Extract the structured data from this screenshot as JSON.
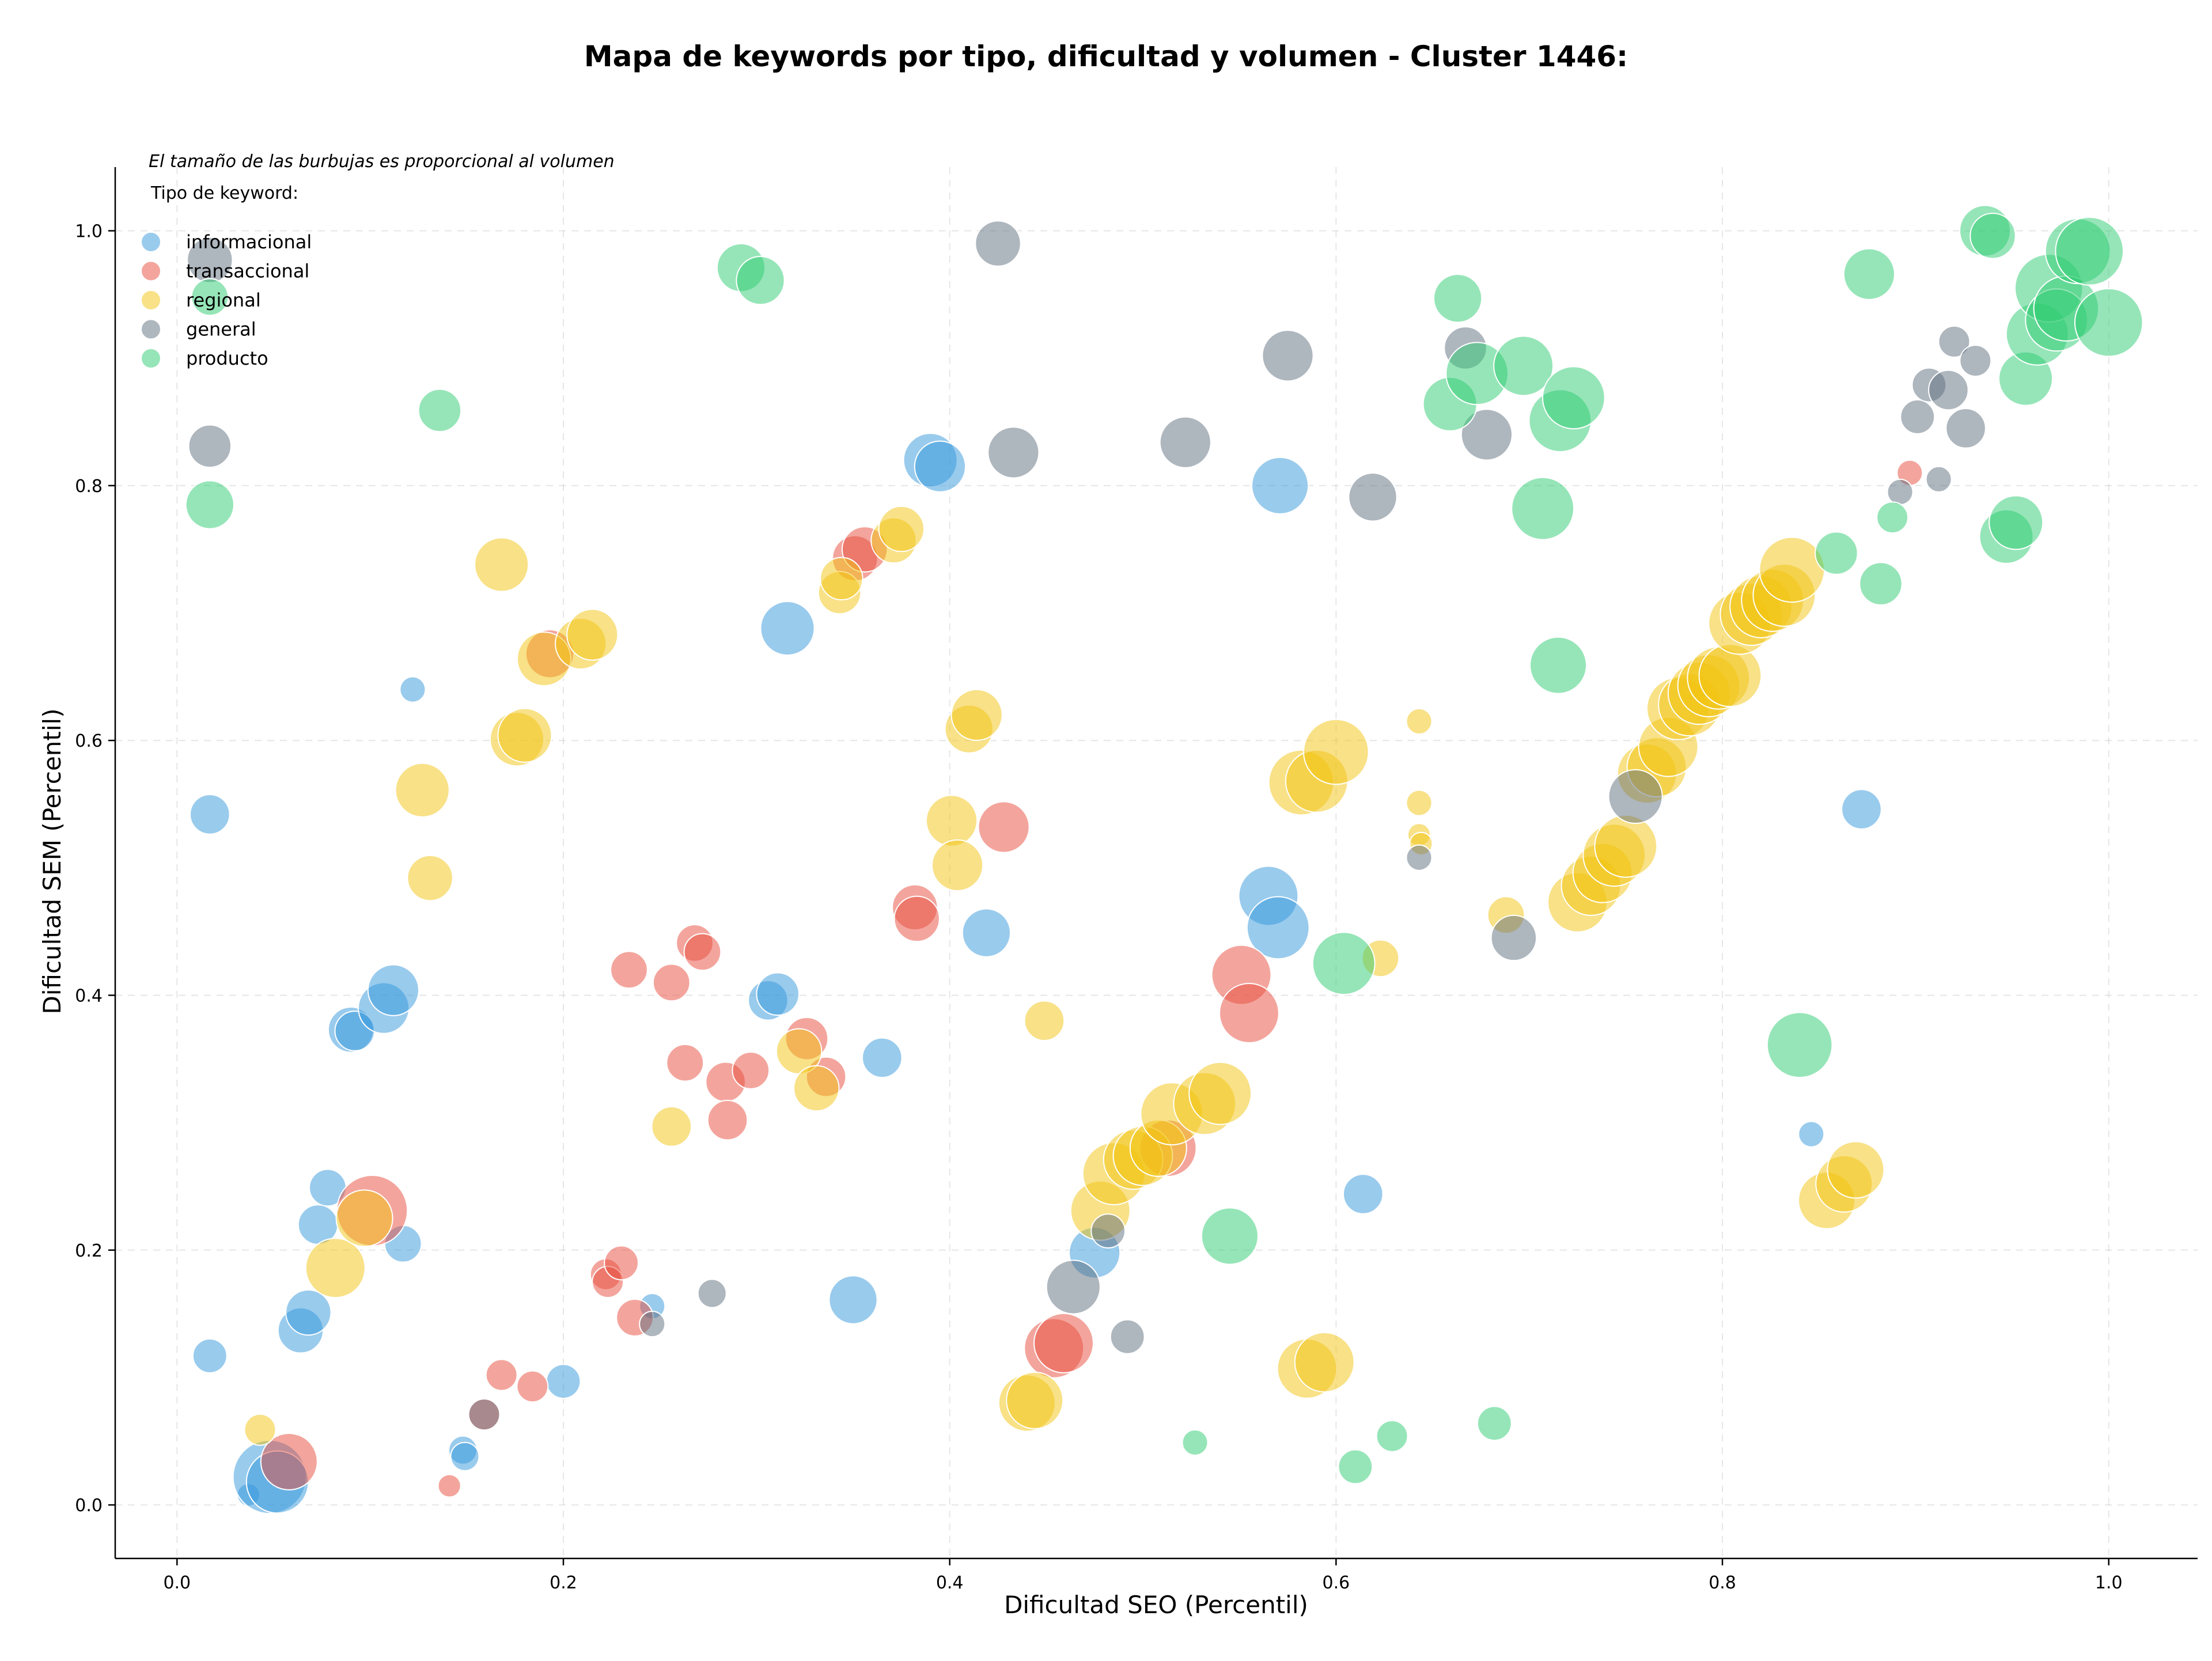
{
  "chart_data": {
    "type": "scatter",
    "title": "Mapa de keywords por tipo, dificultad y volumen - Cluster 1446:",
    "xlabel": "Dificultad SEO (Percentil)",
    "ylabel": "Dificultad SEM (Percentil)",
    "annotation": "El tamaño de las burbujas es proporcional al volumen",
    "xlim": [
      -0.032,
      1.046
    ],
    "ylim": [
      -0.042,
      1.05
    ],
    "xticks": [
      "0.0",
      "0.2",
      "0.4",
      "0.6",
      "0.8",
      "1.0"
    ],
    "yticks": [
      "0.0",
      "0.2",
      "0.4",
      "0.6",
      "0.8",
      "1.0"
    ],
    "xtick_values": [
      0,
      0.2,
      0.4,
      0.6,
      0.8,
      1.0
    ],
    "ytick_values": [
      0,
      0.2,
      0.4,
      0.6,
      0.8,
      1.0
    ],
    "grid": true,
    "legend": {
      "title": "Tipo de keyword:",
      "placement": "top-left"
    },
    "series": [
      {
        "name": "informacional",
        "color": "#3498db",
        "points": [
          [
            0.017,
            0.542,
            14
          ],
          [
            0.017,
            0.117,
            12
          ],
          [
            0.037,
            0.008,
            8
          ],
          [
            0.048,
            0.022,
            26
          ],
          [
            0.052,
            0.018,
            22
          ],
          [
            0.064,
            0.137,
            16
          ],
          [
            0.068,
            0.151,
            16
          ],
          [
            0.073,
            0.22,
            14
          ],
          [
            0.078,
            0.249,
            13
          ],
          [
            0.09,
            0.373,
            16
          ],
          [
            0.092,
            0.372,
            14
          ],
          [
            0.107,
            0.39,
            18
          ],
          [
            0.112,
            0.404,
            18
          ],
          [
            0.117,
            0.205,
            13
          ],
          [
            0.122,
            0.64,
            9
          ],
          [
            0.148,
            0.043,
            10
          ],
          [
            0.149,
            0.038,
            10
          ],
          [
            0.2,
            0.097,
            12
          ],
          [
            0.246,
            0.156,
            9
          ],
          [
            0.306,
            0.396,
            14
          ],
          [
            0.311,
            0.401,
            15
          ],
          [
            0.316,
            0.688,
            19
          ],
          [
            0.35,
            0.161,
            17
          ],
          [
            0.365,
            0.351,
            14
          ],
          [
            0.39,
            0.82,
            19
          ],
          [
            0.395,
            0.815,
            18
          ],
          [
            0.419,
            0.449,
            17
          ],
          [
            0.475,
            0.198,
            18
          ],
          [
            0.565,
            0.478,
            21
          ],
          [
            0.57,
            0.453,
            22
          ],
          [
            0.571,
            0.8,
            20
          ],
          [
            0.614,
            0.244,
            14
          ],
          [
            0.846,
            0.291,
            9
          ],
          [
            0.872,
            0.546,
            14
          ]
        ]
      },
      {
        "name": "transaccional",
        "color": "#e74c3c",
        "points": [
          [
            0.058,
            0.034,
            20
          ],
          [
            0.101,
            0.231,
            25
          ],
          [
            0.141,
            0.015,
            8
          ],
          [
            0.159,
            0.071,
            11
          ],
          [
            0.168,
            0.102,
            11
          ],
          [
            0.184,
            0.093,
            11
          ],
          [
            0.193,
            0.668,
            17
          ],
          [
            0.222,
            0.181,
            11
          ],
          [
            0.223,
            0.175,
            11
          ],
          [
            0.23,
            0.19,
            12
          ],
          [
            0.234,
            0.42,
            13
          ],
          [
            0.237,
            0.147,
            13
          ],
          [
            0.256,
            0.41,
            13
          ],
          [
            0.263,
            0.347,
            13
          ],
          [
            0.268,
            0.441,
            13
          ],
          [
            0.272,
            0.434,
            13
          ],
          [
            0.284,
            0.332,
            14
          ],
          [
            0.285,
            0.302,
            14
          ],
          [
            0.297,
            0.341,
            13
          ],
          [
            0.326,
            0.366,
            15
          ],
          [
            0.336,
            0.336,
            14
          ],
          [
            0.351,
            0.743,
            16
          ],
          [
            0.356,
            0.75,
            16
          ],
          [
            0.382,
            0.469,
            16
          ],
          [
            0.383,
            0.46,
            16
          ],
          [
            0.428,
            0.532,
            18
          ],
          [
            0.454,
            0.123,
            21
          ],
          [
            0.459,
            0.127,
            21
          ],
          [
            0.513,
            0.28,
            20
          ],
          [
            0.551,
            0.416,
            21
          ],
          [
            0.555,
            0.386,
            21
          ],
          [
            0.897,
            0.81,
            9
          ]
        ]
      },
      {
        "name": "regional",
        "color": "#f1c40f",
        "points": [
          [
            0.043,
            0.059,
            11
          ],
          [
            0.082,
            0.186,
            21
          ],
          [
            0.097,
            0.225,
            20
          ],
          [
            0.127,
            0.561,
            19
          ],
          [
            0.131,
            0.492,
            16
          ],
          [
            0.168,
            0.738,
            19
          ],
          [
            0.176,
            0.601,
            19
          ],
          [
            0.18,
            0.604,
            19
          ],
          [
            0.19,
            0.664,
            19
          ],
          [
            0.209,
            0.676,
            18
          ],
          [
            0.215,
            0.683,
            18
          ],
          [
            0.256,
            0.297,
            14
          ],
          [
            0.322,
            0.356,
            16
          ],
          [
            0.331,
            0.327,
            16
          ],
          [
            0.343,
            0.716,
            15
          ],
          [
            0.344,
            0.727,
            15
          ],
          [
            0.371,
            0.757,
            16
          ],
          [
            0.375,
            0.766,
            16
          ],
          [
            0.401,
            0.537,
            18
          ],
          [
            0.404,
            0.502,
            18
          ],
          [
            0.41,
            0.609,
            17
          ],
          [
            0.414,
            0.62,
            18
          ],
          [
            0.44,
            0.08,
            20
          ],
          [
            0.444,
            0.082,
            20
          ],
          [
            0.449,
            0.38,
            14
          ],
          [
            0.478,
            0.231,
            21
          ],
          [
            0.485,
            0.26,
            22
          ],
          [
            0.495,
            0.271,
            21
          ],
          [
            0.5,
            0.274,
            21
          ],
          [
            0.508,
            0.28,
            20
          ],
          [
            0.515,
            0.307,
            22
          ],
          [
            0.532,
            0.315,
            22
          ],
          [
            0.54,
            0.323,
            22
          ],
          [
            0.582,
            0.567,
            23
          ],
          [
            0.59,
            0.568,
            22
          ],
          [
            0.585,
            0.107,
            21
          ],
          [
            0.594,
            0.112,
            21
          ],
          [
            0.6,
            0.591,
            23
          ],
          [
            0.623,
            0.429,
            13
          ],
          [
            0.643,
            0.615,
            9
          ],
          [
            0.643,
            0.551,
            9
          ],
          [
            0.643,
            0.526,
            8
          ],
          [
            0.644,
            0.519,
            8
          ],
          [
            0.688,
            0.463,
            13
          ],
          [
            0.725,
            0.473,
            21
          ],
          [
            0.732,
            0.486,
            21
          ],
          [
            0.738,
            0.496,
            21
          ],
          [
            0.744,
            0.51,
            22
          ],
          [
            0.75,
            0.517,
            22
          ],
          [
            0.761,
            0.574,
            21
          ],
          [
            0.766,
            0.579,
            21
          ],
          [
            0.772,
            0.595,
            21
          ],
          [
            0.777,
            0.625,
            22
          ],
          [
            0.783,
            0.628,
            22
          ],
          [
            0.788,
            0.637,
            22
          ],
          [
            0.793,
            0.643,
            22
          ],
          [
            0.798,
            0.649,
            22
          ],
          [
            0.804,
            0.651,
            22
          ],
          [
            0.809,
            0.692,
            22
          ],
          [
            0.815,
            0.699,
            22
          ],
          [
            0.82,
            0.705,
            22
          ],
          [
            0.826,
            0.71,
            22
          ],
          [
            0.832,
            0.714,
            22
          ],
          [
            0.836,
            0.734,
            23
          ],
          [
            0.854,
            0.239,
            20
          ],
          [
            0.863,
            0.252,
            20
          ],
          [
            0.869,
            0.263,
            20
          ]
        ]
      },
      {
        "name": "general",
        "color": "#5d6d7e",
        "points": [
          [
            0.017,
            0.977,
            16
          ],
          [
            0.017,
            0.831,
            15
          ],
          [
            0.159,
            0.071,
            11
          ],
          [
            0.246,
            0.142,
            9
          ],
          [
            0.277,
            0.166,
            10
          ],
          [
            0.425,
            0.99,
            16
          ],
          [
            0.433,
            0.826,
            18
          ],
          [
            0.464,
            0.171,
            19
          ],
          [
            0.482,
            0.215,
            12
          ],
          [
            0.492,
            0.132,
            12
          ],
          [
            0.522,
            0.834,
            18
          ],
          [
            0.575,
            0.902,
            18
          ],
          [
            0.619,
            0.791,
            17
          ],
          [
            0.643,
            0.508,
            9
          ],
          [
            0.667,
            0.908,
            15
          ],
          [
            0.678,
            0.84,
            18
          ],
          [
            0.692,
            0.445,
            16
          ],
          [
            0.755,
            0.556,
            19
          ],
          [
            0.892,
            0.795,
            9
          ],
          [
            0.901,
            0.854,
            12
          ],
          [
            0.907,
            0.879,
            12
          ],
          [
            0.912,
            0.805,
            9
          ],
          [
            0.917,
            0.875,
            14
          ],
          [
            0.92,
            0.913,
            11
          ],
          [
            0.926,
            0.845,
            14
          ],
          [
            0.931,
            0.898,
            11
          ]
        ]
      },
      {
        "name": "producto",
        "color": "#2ecc71",
        "points": [
          [
            0.017,
            0.948,
            13
          ],
          [
            0.017,
            0.785,
            17
          ],
          [
            0.136,
            0.859,
            15
          ],
          [
            0.292,
            0.971,
            17
          ],
          [
            0.302,
            0.961,
            17
          ],
          [
            0.527,
            0.049,
            9
          ],
          [
            0.545,
            0.211,
            20
          ],
          [
            0.604,
            0.425,
            22
          ],
          [
            0.61,
            0.03,
            12
          ],
          [
            0.629,
            0.054,
            11
          ],
          [
            0.659,
            0.864,
            19
          ],
          [
            0.663,
            0.947,
            17
          ],
          [
            0.673,
            0.888,
            22
          ],
          [
            0.682,
            0.064,
            12
          ],
          [
            0.697,
            0.894,
            21
          ],
          [
            0.707,
            0.782,
            22
          ],
          [
            0.715,
            0.659,
            20
          ],
          [
            0.716,
            0.851,
            22
          ],
          [
            0.723,
            0.869,
            22
          ],
          [
            0.84,
            0.361,
            23
          ],
          [
            0.859,
            0.747,
            15
          ],
          [
            0.876,
            0.966,
            18
          ],
          [
            0.882,
            0.723,
            15
          ],
          [
            0.888,
            0.775,
            11
          ],
          [
            0.936,
            1.0,
            18
          ],
          [
            0.94,
            0.996,
            16
          ],
          [
            0.947,
            0.76,
            19
          ],
          [
            0.952,
            0.771,
            19
          ],
          [
            0.957,
            0.884,
            19
          ],
          [
            0.963,
            0.919,
            22
          ],
          [
            0.969,
            0.955,
            24
          ],
          [
            0.973,
            0.93,
            22
          ],
          [
            0.978,
            0.939,
            23
          ],
          [
            0.984,
            0.984,
            23
          ],
          [
            0.99,
            0.984,
            24
          ],
          [
            1.0,
            0.928,
            24
          ]
        ]
      }
    ]
  }
}
